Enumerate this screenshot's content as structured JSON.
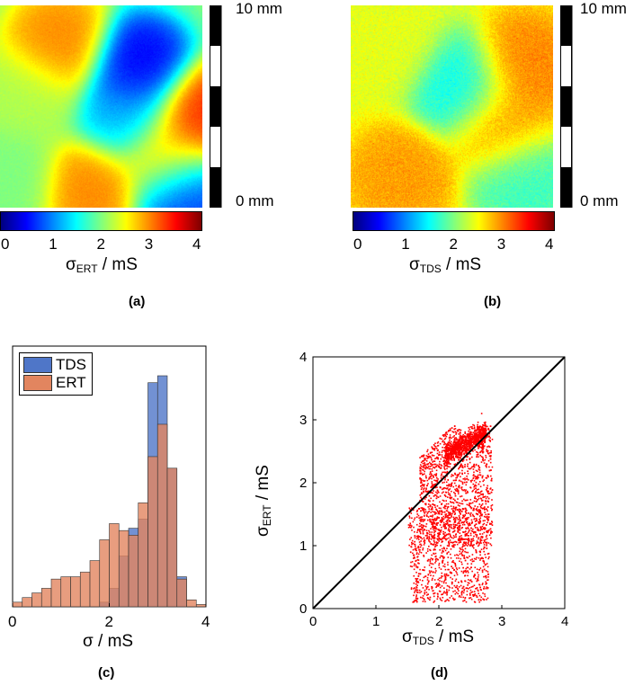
{
  "panels": {
    "a": {
      "label": "(a)",
      "colorbar_label_main": "σ",
      "colorbar_label_sub": "ERT",
      "colorbar_label_unit": " / mS"
    },
    "b": {
      "label": "(b)",
      "colorbar_label_main": "σ",
      "colorbar_label_sub": "TDS",
      "colorbar_label_unit": " / mS"
    },
    "c": {
      "label": "(c)"
    },
    "d": {
      "label": "(d)"
    }
  },
  "scale_bar": {
    "top_label": "10 mm",
    "bottom_label": "0 mm",
    "segments": 5
  },
  "colorbar": {
    "ticks": [
      "0",
      "1",
      "2",
      "3",
      "4"
    ],
    "range": [
      0,
      4
    ],
    "colormap": "jet"
  },
  "chart_data": [
    {
      "type": "heatmap",
      "panel": "a",
      "xlabel": "",
      "ylabel": "",
      "colorbar_label": "σERT / mS",
      "crange": [
        0,
        4
      ],
      "blobs": [
        {
          "x": 0.15,
          "y": 0.45,
          "value": 2.2
        },
        {
          "x": 0.3,
          "y": 0.2,
          "value": 3.0
        },
        {
          "x": 0.68,
          "y": 0.32,
          "value": 0.4
        },
        {
          "x": 0.62,
          "y": 0.55,
          "value": 1.2
        },
        {
          "x": 0.97,
          "y": 0.55,
          "value": 3.4
        },
        {
          "x": 0.9,
          "y": 0.92,
          "value": 0.6
        },
        {
          "x": 0.45,
          "y": 0.9,
          "value": 3.0
        },
        {
          "x": 0.05,
          "y": 0.85,
          "value": 2.0
        },
        {
          "x": 0.82,
          "y": 0.75,
          "value": 2.8
        }
      ]
    },
    {
      "type": "heatmap",
      "panel": "b",
      "xlabel": "",
      "ylabel": "",
      "colorbar_label": "σTDS / mS",
      "crange": [
        0,
        4
      ],
      "blobs": [
        {
          "x": 0.55,
          "y": 0.4,
          "value": 1.5
        },
        {
          "x": 0.85,
          "y": 0.3,
          "value": 3.0
        },
        {
          "x": 0.85,
          "y": 0.85,
          "value": 1.7
        },
        {
          "x": 0.25,
          "y": 0.85,
          "value": 2.9
        },
        {
          "x": 0.2,
          "y": 0.2,
          "value": 2.4
        },
        {
          "x": 0.75,
          "y": 0.6,
          "value": 2.9
        }
      ]
    },
    {
      "type": "bar",
      "panel": "c",
      "xlabel": "σ / mS",
      "ylabel": "",
      "xlim": [
        0,
        4
      ],
      "xticks": [
        "0",
        "2",
        "4"
      ],
      "bin_width": 0.2,
      "bin_start": 0,
      "legend": "top-left",
      "series": [
        {
          "name": "TDS",
          "color": "#4f76c8",
          "values": [
            0,
            0,
            0,
            0,
            0,
            0,
            0,
            0,
            0,
            0.02,
            0.08,
            0.22,
            0.34,
            0.38,
            0.97,
            1.0,
            0.6,
            0.13,
            0,
            0,
            0
          ]
        },
        {
          "name": "ERT",
          "color": "#e2855f",
          "values": [
            0.02,
            0.04,
            0.06,
            0.08,
            0.12,
            0.13,
            0.13,
            0.15,
            0.2,
            0.29,
            0.36,
            0.33,
            0.31,
            0.45,
            0.65,
            0.79,
            0.6,
            0.12,
            0.03,
            0.01,
            0
          ]
        }
      ]
    },
    {
      "type": "scatter",
      "panel": "d",
      "xlabel": "σTDS / mS",
      "ylabel": "σERT / mS",
      "xlim": [
        0,
        4
      ],
      "ylim": [
        0,
        4
      ],
      "xticks": [
        "0",
        "1",
        "2",
        "3",
        "4"
      ],
      "yticks": [
        "0",
        "1",
        "2",
        "3",
        "4"
      ],
      "color": "#ff0000",
      "reference_line": [
        [
          0,
          0
        ],
        [
          4,
          4
        ]
      ],
      "point_count": 3600
    }
  ]
}
